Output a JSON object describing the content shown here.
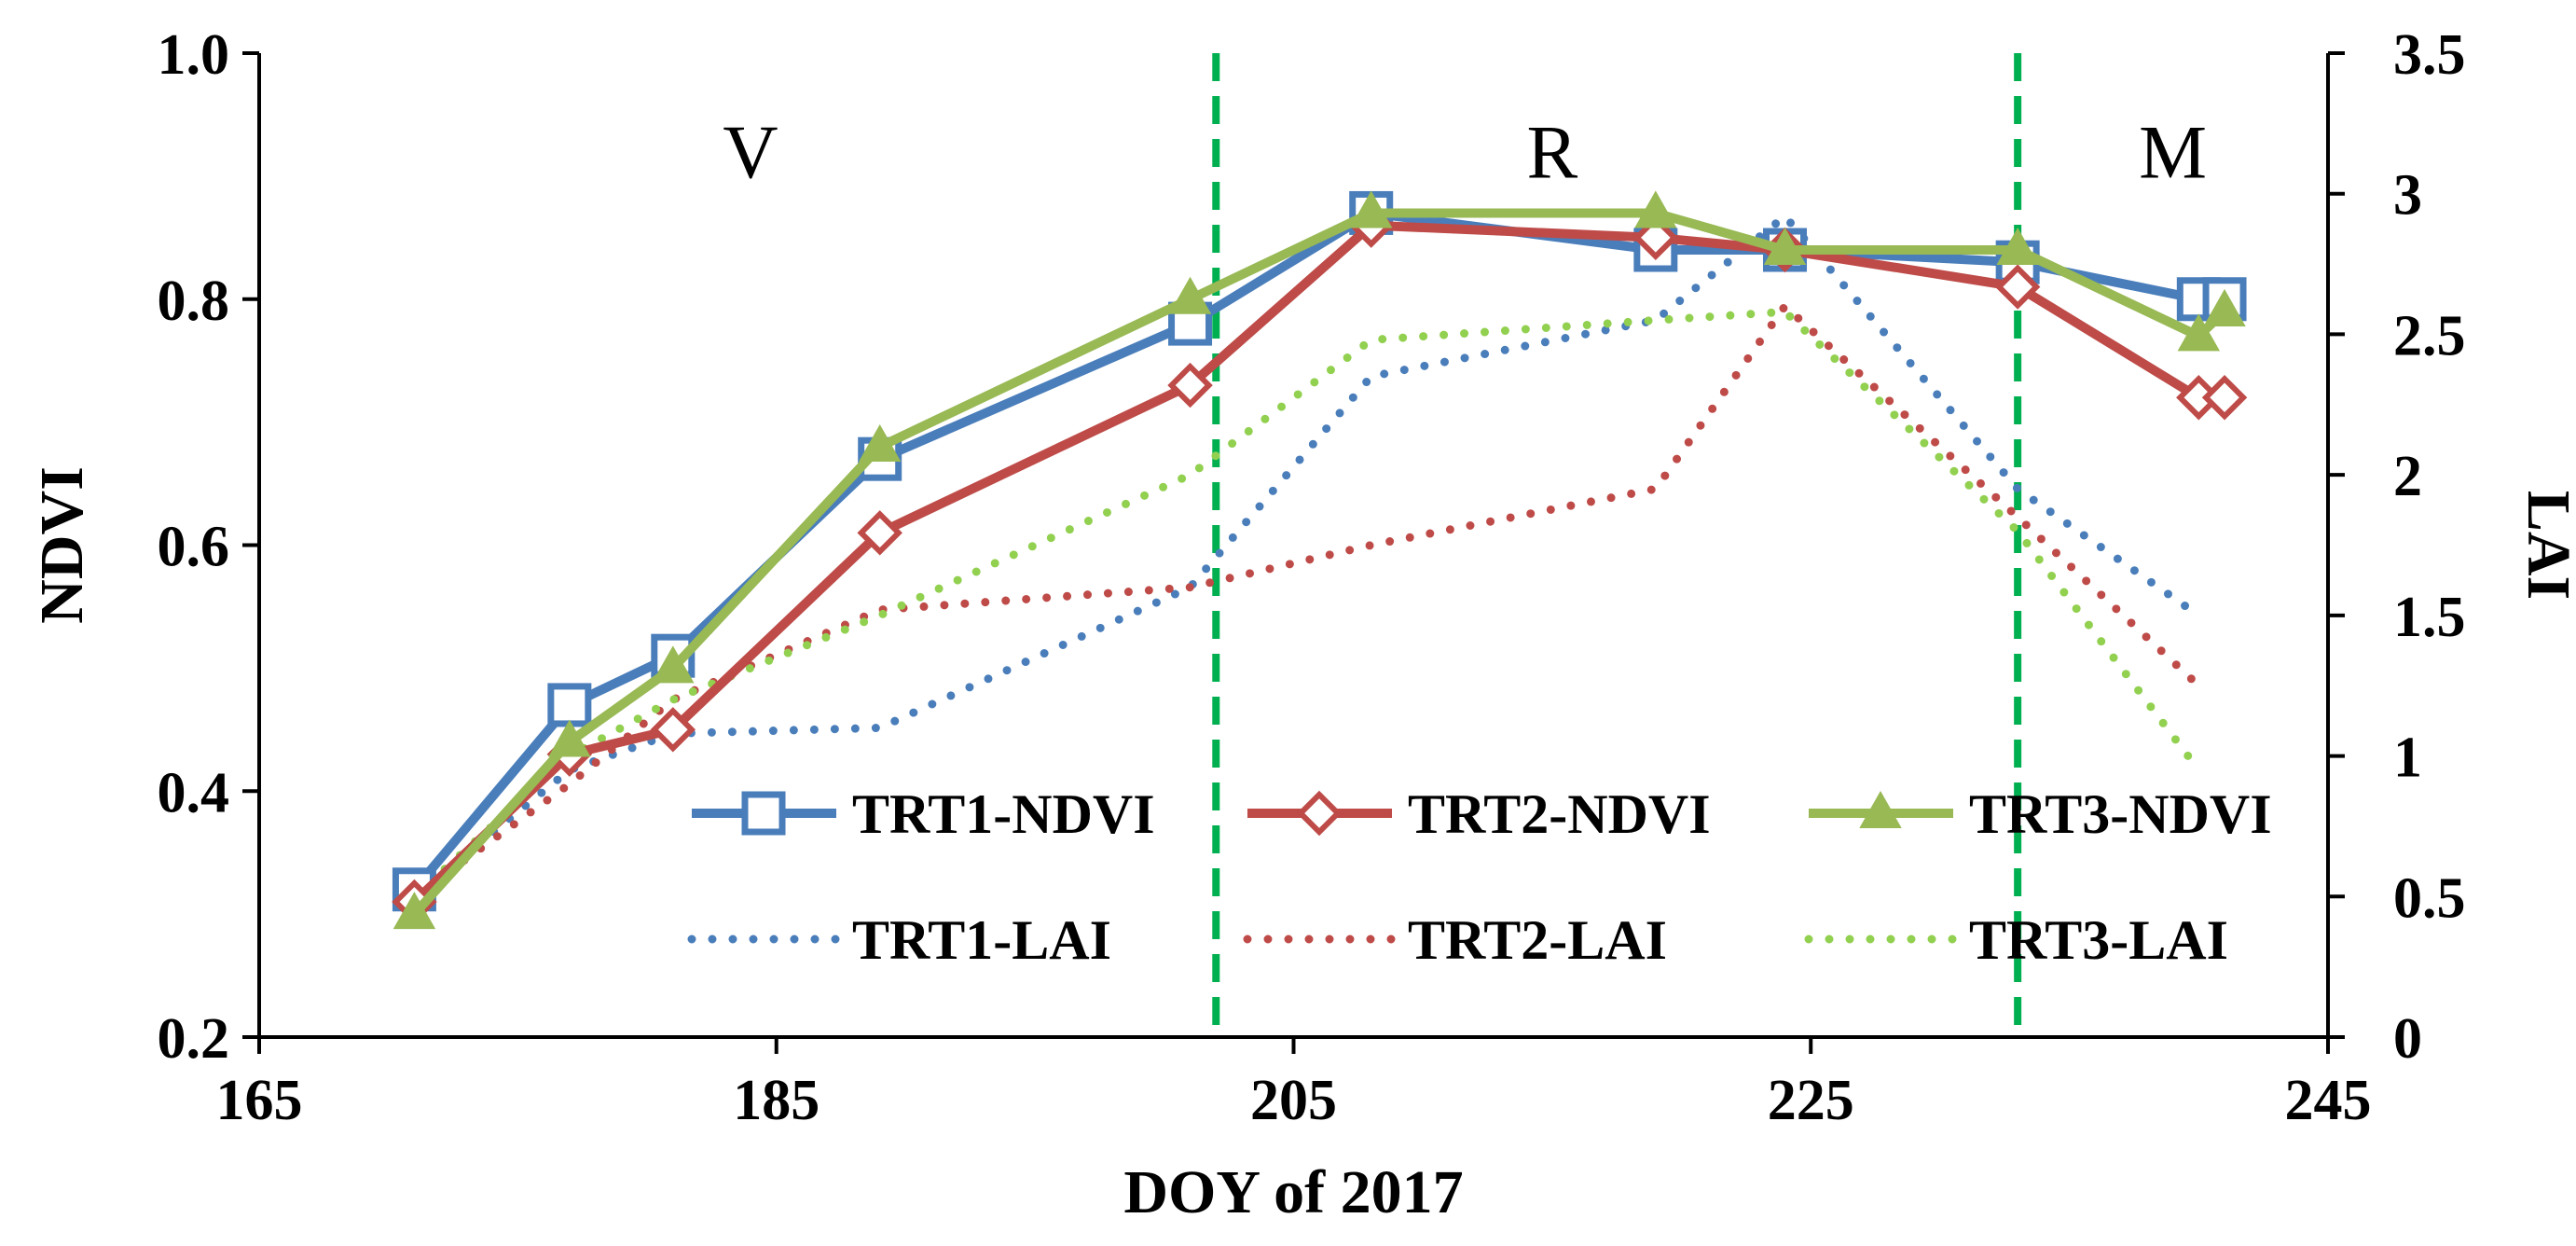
{
  "chart_data": {
    "type": "line",
    "title": "",
    "xlabel": "DOY of 2017",
    "ylabel": "NDVI",
    "y2label": "LAI",
    "xlim": [
      165,
      245
    ],
    "ylim": [
      0.2,
      1.0
    ],
    "y2lim": [
      0,
      3.5
    ],
    "grid": false,
    "x_ticks": [
      {
        "value": 165,
        "label": "165"
      },
      {
        "value": 185,
        "label": "185"
      },
      {
        "value": 205,
        "label": "205"
      },
      {
        "value": 225,
        "label": "225"
      },
      {
        "value": 245,
        "label": "245"
      }
    ],
    "y_ticks": [
      {
        "value": 0.2,
        "label": "0.2"
      },
      {
        "value": 0.4,
        "label": "0.4"
      },
      {
        "value": 0.6,
        "label": "0.6"
      },
      {
        "value": 0.8,
        "label": "0.8"
      },
      {
        "value": 1.0,
        "label": "1.0"
      }
    ],
    "y2_ticks": [
      {
        "value": 0,
        "label": "0"
      },
      {
        "value": 0.5,
        "label": "0.5"
      },
      {
        "value": 1,
        "label": "1"
      },
      {
        "value": 1.5,
        "label": "1.5"
      },
      {
        "value": 2,
        "label": "2"
      },
      {
        "value": 2.5,
        "label": "2.5"
      },
      {
        "value": 3,
        "label": "3"
      },
      {
        "value": 3.5,
        "label": "3.5"
      }
    ],
    "stage_boundaries": [
      202,
      233
    ],
    "stage_boundary_color": "#00b050",
    "stages": [
      {
        "label": "V",
        "x": 184,
        "y": 0.92
      },
      {
        "label": "R",
        "x": 215,
        "y": 0.92
      },
      {
        "label": "M",
        "x": 239,
        "y": 0.92
      }
    ],
    "series": [
      {
        "name": "TRT1-NDVI",
        "axis": "left",
        "style": "solid",
        "marker": "square",
        "color": "#4a7ebb",
        "x": [
          171,
          177,
          181,
          189,
          201,
          208,
          219,
          224,
          233,
          240,
          241
        ],
        "y": [
          0.32,
          0.47,
          0.51,
          0.67,
          0.78,
          0.87,
          0.84,
          0.84,
          0.83,
          0.8,
          0.8
        ]
      },
      {
        "name": "TRT2-NDVI",
        "axis": "left",
        "style": "solid",
        "marker": "diamond",
        "color": "#be4b48",
        "x": [
          171,
          177,
          181,
          189,
          201,
          208,
          219,
          224,
          233,
          240,
          241
        ],
        "y": [
          0.31,
          0.43,
          0.45,
          0.61,
          0.73,
          0.86,
          0.85,
          0.84,
          0.81,
          0.72,
          0.72
        ]
      },
      {
        "name": "TRT3-NDVI",
        "axis": "left",
        "style": "solid",
        "marker": "triangle",
        "color": "#98b954",
        "x": [
          171,
          177,
          181,
          189,
          201,
          208,
          219,
          224,
          233,
          240,
          241
        ],
        "y": [
          0.3,
          0.44,
          0.5,
          0.68,
          0.8,
          0.87,
          0.87,
          0.84,
          0.84,
          0.77,
          0.79
        ]
      },
      {
        "name": "TRT1-LAI",
        "axis": "right",
        "style": "dotted",
        "marker": "none",
        "color": "#4a7ebb",
        "x": [
          171,
          177,
          181,
          189,
          201,
          208,
          219,
          224,
          233,
          240
        ],
        "y": [
          0.5,
          0.95,
          1.08,
          1.1,
          1.6,
          2.35,
          2.55,
          2.92,
          1.95,
          1.5
        ]
      },
      {
        "name": "TRT2-LAI",
        "axis": "right",
        "style": "dotted",
        "marker": "none",
        "color": "#be4b48",
        "x": [
          171,
          177,
          181,
          189,
          201,
          208,
          219,
          224,
          233,
          240
        ],
        "y": [
          0.5,
          0.9,
          1.2,
          1.52,
          1.6,
          1.75,
          1.95,
          2.6,
          1.85,
          1.25
        ]
      },
      {
        "name": "TRT3-LAI",
        "axis": "right",
        "style": "dotted",
        "marker": "none",
        "color": "#92d050",
        "x": [
          171,
          177,
          181,
          189,
          201,
          208,
          219,
          224,
          233,
          240
        ],
        "y": [
          0.5,
          1.0,
          1.2,
          1.5,
          2.0,
          2.48,
          2.55,
          2.58,
          1.8,
          0.95
        ]
      }
    ],
    "legend": {
      "placement": "bottom-center",
      "columns": 3
    }
  }
}
